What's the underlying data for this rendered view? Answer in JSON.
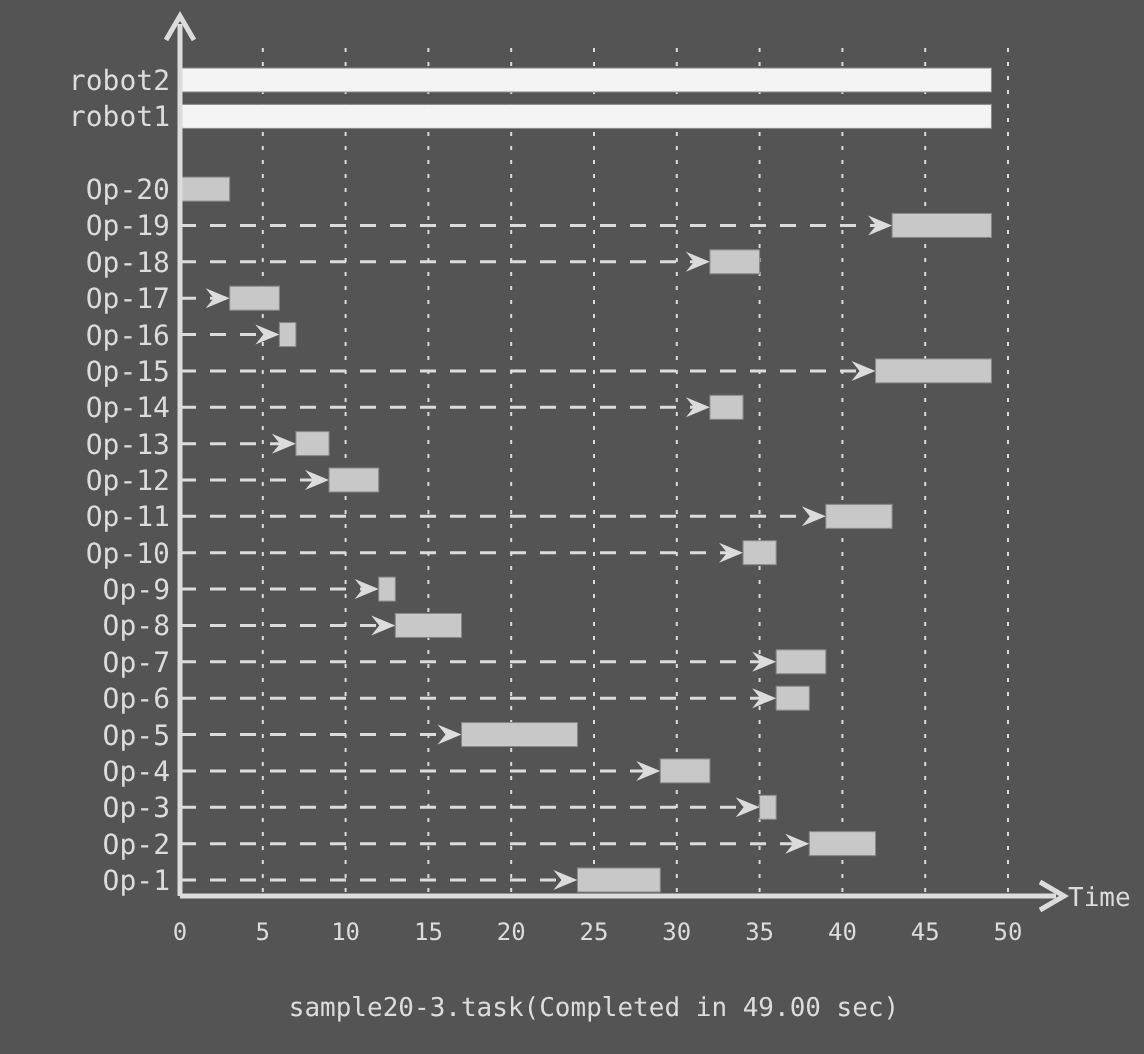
{
  "chart_data": {
    "type": "bar",
    "orientation": "horizontal",
    "xlabel": "Time",
    "annotations": [
      "sample20-3.task(Completed in 49.00 sec)"
    ],
    "categories": [
      "robot2",
      "robot1",
      null,
      "Op-20",
      "Op-19",
      "Op-18",
      "Op-17",
      "Op-16",
      "Op-15",
      "Op-14",
      "Op-13",
      "Op-12",
      "Op-11",
      "Op-10",
      "Op-9",
      "Op-8",
      "Op-7",
      "Op-6",
      "Op-5",
      "Op-4",
      "Op-3",
      "Op-2",
      "Op-1"
    ],
    "base": [
      0,
      0,
      null,
      0,
      43,
      32,
      3,
      6,
      42,
      32,
      7,
      9,
      39,
      34,
      12,
      13,
      36,
      36,
      17,
      29,
      35,
      38,
      24
    ],
    "values": [
      49,
      49,
      null,
      3,
      6,
      3,
      3,
      1,
      7,
      2,
      2,
      3,
      4,
      2,
      1,
      4,
      3,
      2,
      7,
      3,
      1,
      4,
      5
    ],
    "colors": [
      "#f4f4f4",
      "#f4f4f4",
      null,
      "#c8c8c8",
      "#c8c8c8",
      "#c8c8c8",
      "#c8c8c8",
      "#c8c8c8",
      "#c8c8c8",
      "#c8c8c8",
      "#c8c8c8",
      "#c8c8c8",
      "#c8c8c8",
      "#c8c8c8",
      "#c8c8c8",
      "#c8c8c8",
      "#c8c8c8",
      "#c8c8c8",
      "#c8c8c8",
      "#c8c8c8",
      "#c8c8c8",
      "#c8c8c8",
      "#c8c8c8"
    ],
    "xlim": [
      0,
      50
    ],
    "xticks": [
      0,
      5,
      10,
      15,
      20,
      25,
      30,
      35,
      40,
      45,
      50
    ],
    "grid": "x"
  }
}
